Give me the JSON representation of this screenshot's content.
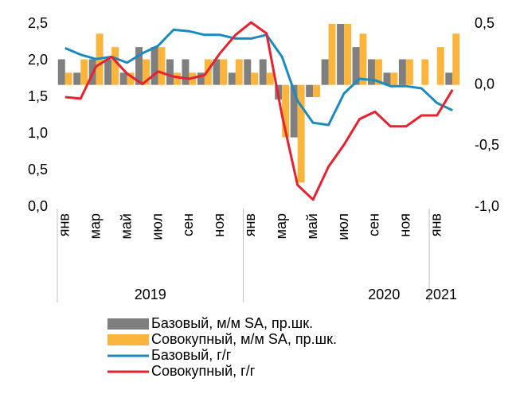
{
  "chart_data": {
    "type": "bar",
    "categories": [
      "янв",
      null,
      "мар",
      null,
      "май",
      null,
      "июл",
      null,
      "сен",
      null,
      "ноя",
      null,
      "янв",
      null,
      "мар",
      null,
      "май",
      null,
      "июл",
      null,
      "сен",
      null,
      "ноя",
      null,
      "янв",
      null
    ],
    "years": [
      "2019",
      "2020",
      "2021"
    ],
    "ylim": [
      0,
      2.5
    ],
    "yticks": [
      {
        "value": 0,
        "label": "0,0"
      },
      {
        "value": 0.5,
        "label": "0,5"
      },
      {
        "value": 1,
        "label": "1,0"
      },
      {
        "value": 1.5,
        "label": "1,5"
      },
      {
        "value": 2,
        "label": "2,0"
      },
      {
        "value": 2.5,
        "label": "2,5"
      }
    ],
    "y2lim": [
      -1,
      0.5
    ],
    "y2ticks": [
      {
        "value": -1,
        "label": "-1,0"
      },
      {
        "value": -0.5,
        "label": "-0,5"
      },
      {
        "value": 0,
        "label": "0,0"
      },
      {
        "value": 0.5,
        "label": "0,5"
      }
    ],
    "series": [
      {
        "name": "Базовый, м/м SA, пр.шк.",
        "kind": "bar",
        "axis": "y2",
        "color": "#7f7f7f",
        "values": [
          0.21,
          0.1,
          0.21,
          0.21,
          0.1,
          0.31,
          0.31,
          0.21,
          0.21,
          0.1,
          0.21,
          0.1,
          0.21,
          0.21,
          -0.12,
          -0.43,
          -0.1,
          0.21,
          0.5,
          0.31,
          0.21,
          0.1,
          0.21,
          0,
          0,
          0.1
        ]
      },
      {
        "name": "Совокупный, м/м SA, пр.шк.",
        "kind": "bar",
        "axis": "y2",
        "color": "#fbb53c",
        "values": [
          0.1,
          0.21,
          0.42,
          0.31,
          0.1,
          0.21,
          0.31,
          0.1,
          0.1,
          0.21,
          0.21,
          0.21,
          0.1,
          0.1,
          -0.43,
          -0.8,
          -0.1,
          0.5,
          0.5,
          0.42,
          0.21,
          0.1,
          0.21,
          0.21,
          0.31,
          0.42
        ]
      },
      {
        "name": "Базовый, г/г",
        "kind": "line",
        "color": "#1a8bc0",
        "values": [
          2.17,
          2.08,
          2.02,
          2.05,
          1.97,
          2.1,
          2.2,
          2.42,
          2.4,
          2.35,
          2.35,
          2.3,
          2.3,
          2.35,
          2.05,
          1.45,
          1.15,
          1.12,
          1.55,
          1.75,
          1.73,
          1.65,
          1.65,
          1.62,
          1.42,
          1.32
        ]
      },
      {
        "name": "Совокупный, г/г",
        "kind": "line",
        "color": "#e8212f",
        "values": [
          1.5,
          1.48,
          1.92,
          2.05,
          1.82,
          1.68,
          1.85,
          1.78,
          1.75,
          1.8,
          2.1,
          2.35,
          2.52,
          2.37,
          1.25,
          0.3,
          0.1,
          0.55,
          0.85,
          1.2,
          1.3,
          1.1,
          1.1,
          1.25,
          1.25,
          1.6
        ]
      }
    ]
  }
}
